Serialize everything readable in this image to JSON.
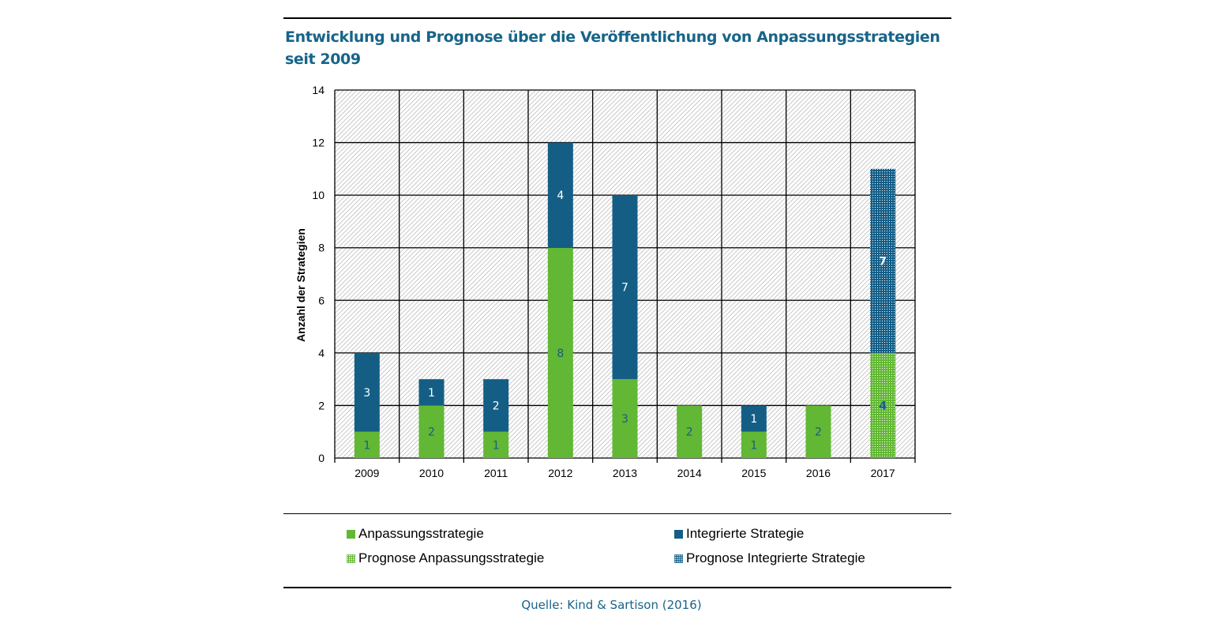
{
  "title": "Entwicklung und Prognose über die Veröffentlichung von Anpassungsstrategien seit 2009",
  "source": "Quelle: Kind & Sartison (2016)",
  "colors": {
    "anpassung": "#62b734",
    "integriert": "#145e86",
    "title": "#176489",
    "label_on_green": "#145e86",
    "label_on_blue": "#ffffff"
  },
  "legend": [
    {
      "label": "Anpassungsstrategie",
      "key": "anpassung",
      "pattern": "solid"
    },
    {
      "label": "Integrierte Strategie",
      "key": "integriert",
      "pattern": "solid"
    },
    {
      "label": "Prognose Anpassungsstrategie",
      "key": "anpassung",
      "pattern": "dotted"
    },
    {
      "label": "Prognose Integrierte Strategie",
      "key": "integriert",
      "pattern": "dotted"
    }
  ],
  "chart_data": {
    "type": "bar",
    "stacked": true,
    "title": "Entwicklung und Prognose über die Veröffentlichung von Anpassungsstrategien seit 2009",
    "xlabel": "",
    "ylabel": "Anzahl der Strategien",
    "ylim": [
      0,
      14
    ],
    "yticks": [
      0,
      2,
      4,
      6,
      8,
      10,
      12,
      14
    ],
    "grid": true,
    "legend_position": "bottom",
    "categories": [
      "2009",
      "2010",
      "2011",
      "2012",
      "2013",
      "2014",
      "2015",
      "2016",
      "2017"
    ],
    "series": [
      {
        "name": "Anpassungsstrategie",
        "values": [
          1,
          2,
          1,
          8,
          3,
          2,
          1,
          2,
          null
        ]
      },
      {
        "name": "Integrierte Strategie",
        "values": [
          3,
          1,
          2,
          4,
          7,
          null,
          1,
          null,
          null
        ]
      },
      {
        "name": "Prognose Anpassungsstrategie",
        "values": [
          null,
          null,
          null,
          null,
          null,
          null,
          null,
          null,
          4
        ]
      },
      {
        "name": "Prognose Integrierte Strategie",
        "values": [
          null,
          null,
          null,
          null,
          null,
          null,
          null,
          null,
          7
        ]
      }
    ]
  }
}
